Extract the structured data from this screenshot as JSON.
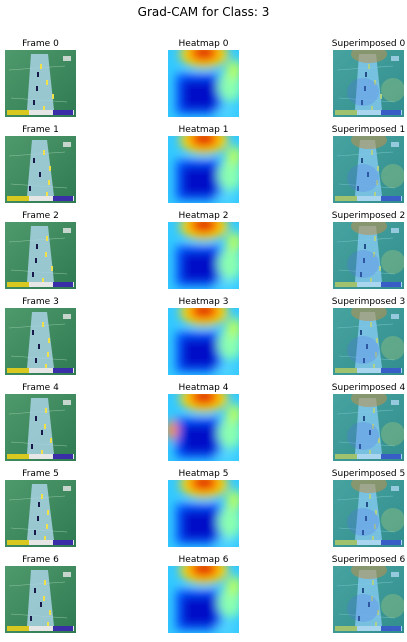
{
  "title": "Grad-CAM for Class: 3",
  "rows": [
    {
      "frame": "Frame 0",
      "heatmap": "Heatmap 0",
      "superimposed": "Superimposed 0"
    },
    {
      "frame": "Frame 1",
      "heatmap": "Heatmap 1",
      "superimposed": "Superimposed 1"
    },
    {
      "frame": "Frame 2",
      "heatmap": "Heatmap 2",
      "superimposed": "Superimposed 2"
    },
    {
      "frame": "Frame 3",
      "heatmap": "Heatmap 3",
      "superimposed": "Superimposed 3"
    },
    {
      "frame": "Frame 4",
      "heatmap": "Heatmap 4",
      "superimposed": "Superimposed 4"
    },
    {
      "frame": "Frame 5",
      "heatmap": "Heatmap 5",
      "superimposed": "Superimposed 5"
    },
    {
      "frame": "Frame 6",
      "heatmap": "Heatmap 6",
      "superimposed": "Superimposed 6"
    }
  ],
  "colors": {
    "field": "#3c8a5e",
    "pitch": "#a9d2e4",
    "jet_low": "#0010c8",
    "jet_mid": "#33c9ff",
    "jet_high": "#d00000"
  }
}
